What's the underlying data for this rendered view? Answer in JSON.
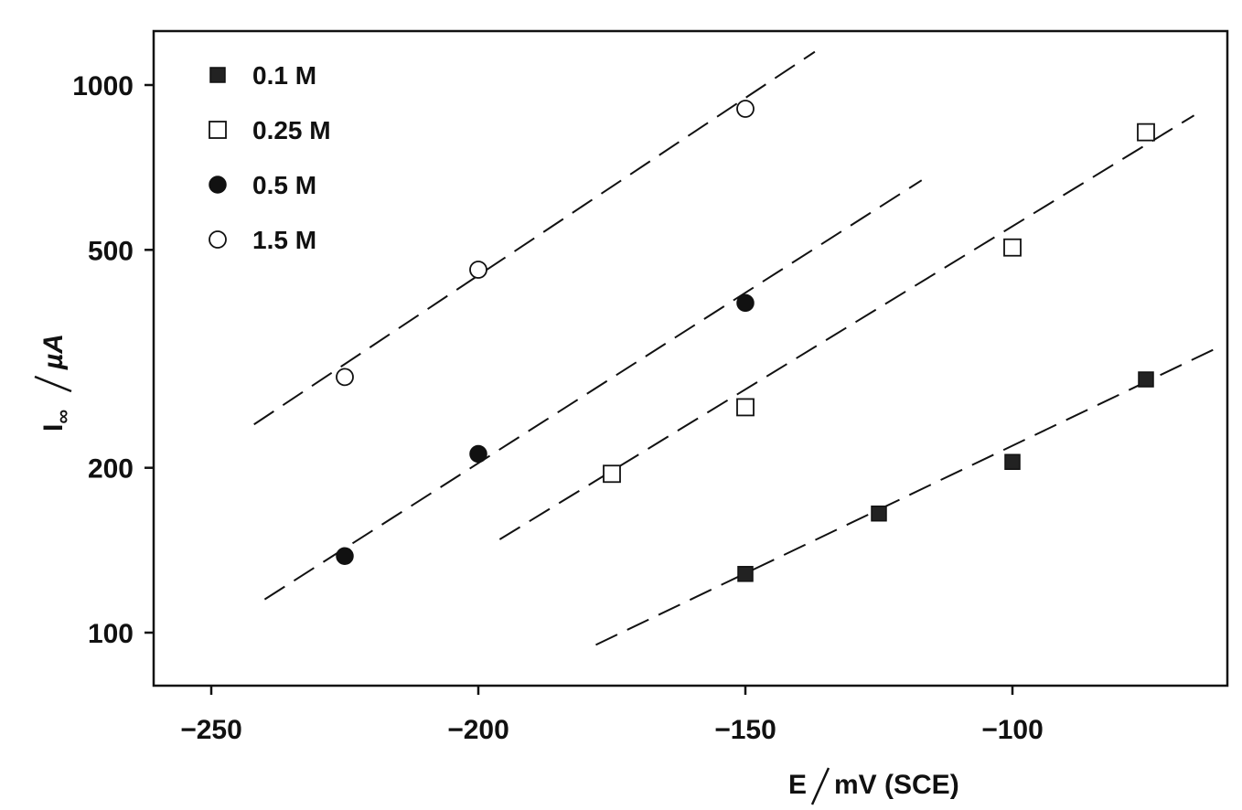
{
  "chart_data": {
    "type": "scatter",
    "title": "",
    "xlabel": "E / mV (SCE)",
    "ylabel": "I∞ / µA",
    "ylabel_main": "I",
    "ylabel_sub": "∞",
    "ylabel_unit": "µA",
    "xlabel_main": "E",
    "xlabel_unit": "mV (SCE)",
    "xscale": "linear",
    "yscale": "log",
    "xlim": [
      -260,
      -60
    ],
    "ylim": [
      80,
      1200
    ],
    "xticks": [
      -250,
      -200,
      -150,
      -100
    ],
    "xtick_labels": [
      "−250",
      "−200",
      "−150",
      "−100"
    ],
    "yticks": [
      100,
      200,
      500,
      1000
    ],
    "ytick_labels": [
      "100",
      "200",
      "500",
      "1000"
    ],
    "grid": false,
    "legend_position": "top-left",
    "series": [
      {
        "name": "0.1 M",
        "marker": "filled-square",
        "points": [
          [
            -150,
            128
          ],
          [
            -125,
            165
          ],
          [
            -100,
            205
          ],
          [
            -75,
            290
          ]
        ],
        "fit_line": [
          [
            -178,
            95
          ],
          [
            -62,
            330
          ]
        ]
      },
      {
        "name": "0.25 M",
        "marker": "open-square",
        "points": [
          [
            -175,
            195
          ],
          [
            -150,
            258
          ],
          [
            -100,
            505
          ],
          [
            -75,
            820
          ]
        ],
        "fit_line": [
          [
            -196,
            148
          ],
          [
            -66,
            880
          ]
        ]
      },
      {
        "name": "0.5 M",
        "marker": "filled-circle",
        "points": [
          [
            -225,
            138
          ],
          [
            -200,
            212
          ],
          [
            -150,
            400
          ]
        ],
        "fit_line": [
          [
            -240,
            115
          ],
          [
            -117,
            670
          ]
        ]
      },
      {
        "name": "1.5 M",
        "marker": "open-circle",
        "points": [
          [
            -225,
            293
          ],
          [
            -200,
            460
          ],
          [
            -150,
            905
          ]
        ],
        "fit_line": [
          [
            -242,
            240
          ],
          [
            -137,
            1150
          ]
        ]
      }
    ]
  }
}
